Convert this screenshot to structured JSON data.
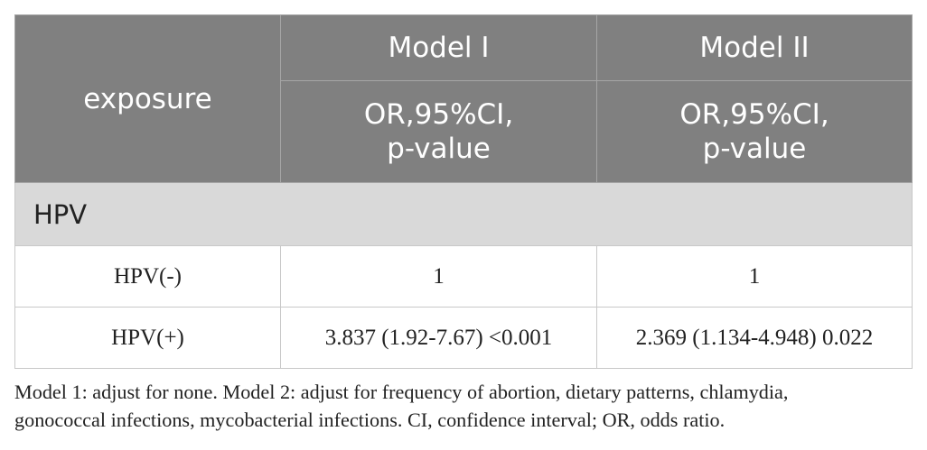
{
  "table": {
    "header": {
      "exposure_label": "exposure",
      "models": [
        {
          "name": "Model I",
          "stat_line1": "OR,95%CI,",
          "stat_line2": "p-value"
        },
        {
          "name": "Model II",
          "stat_line1": "OR,95%CI,",
          "stat_line2": "p-value"
        }
      ]
    },
    "section_label": "HPV",
    "rows": [
      {
        "exposure": "HPV(-)",
        "model1": "1",
        "model2": "1"
      },
      {
        "exposure": "HPV(+)",
        "model1": "3.837 (1.92-7.67) <0.001",
        "model2": "2.369 (1.134-4.948) 0.022"
      }
    ]
  },
  "footnote": {
    "line1": "Model 1: adjust for none. Model 2: adjust for frequency of abortion, dietary patterns, chlamydia,",
    "line2": "gonococcal infections, mycobacterial infections. CI, confidence interval; OR, odds ratio."
  },
  "colors": {
    "header_bg": "#808080",
    "section_bg": "#d9d9d9",
    "header_text": "#ffffff",
    "body_text": "#222222"
  }
}
